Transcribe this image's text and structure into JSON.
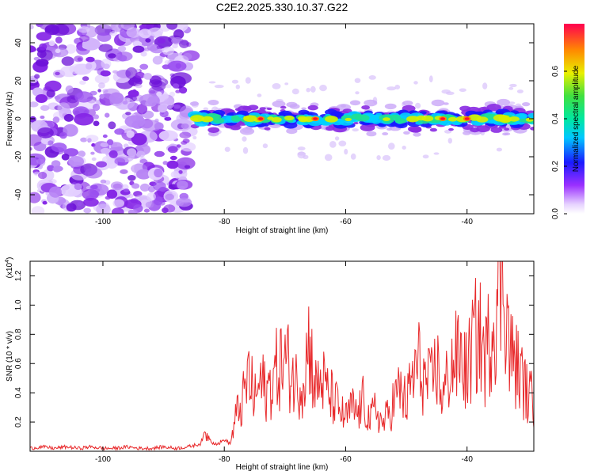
{
  "chart_data": [
    {
      "type": "heatmap",
      "title": "C2E2.2025.330.10.37.G22",
      "xlabel": "Height of straight line (km)",
      "ylabel": "Frequency (Hz)",
      "xlim": [
        -112,
        -29
      ],
      "ylim": [
        -50,
        50
      ],
      "xticks": [
        -100,
        -80,
        -60,
        -40
      ],
      "yticks": [
        -40,
        -20,
        0,
        20,
        40
      ],
      "colorbar": {
        "label": "Normalized spectral amplitude",
        "range": [
          0,
          0.8
        ],
        "ticks": [
          0.0,
          0.2,
          0.4,
          0.6
        ]
      },
      "features": {
        "noise_region_x": [
          -112,
          -85
        ],
        "signal_band_x": [
          -85,
          -29
        ],
        "signal_band_center_hz": 0,
        "signal_band_halfwidth_hz": 5,
        "peak_x": [
          -74,
          -65,
          -44,
          -40
        ]
      }
    },
    {
      "type": "line",
      "xlabel": "Height of straight line (km)",
      "ylabel": "SNR (10 * v/v)",
      "scale_label": "(x10",
      "scale_exponent": "4",
      "xlim": [
        -112,
        -29
      ],
      "ylim": [
        0,
        1.3
      ],
      "xticks": [
        -100,
        -80,
        -60,
        -40
      ],
      "yticks": [
        0.2,
        0.4,
        0.6,
        0.8,
        1.0,
        1.2
      ],
      "series": [
        {
          "name": "SNR",
          "color": "#e8292b",
          "x": [
            -112,
            -110,
            -108,
            -106,
            -104,
            -102,
            -100,
            -98,
            -96,
            -94,
            -92,
            -90,
            -88,
            -86,
            -84,
            -83,
            -82,
            -81,
            -80,
            -79,
            -78,
            -77,
            -76,
            -75,
            -74,
            -73,
            -72,
            -71,
            -70,
            -69,
            -68,
            -67,
            -66,
            -65,
            -64,
            -63,
            -62,
            -61,
            -60,
            -59,
            -58,
            -57,
            -56,
            -55,
            -54,
            -53,
            -52,
            -51,
            -50,
            -49,
            -48,
            -47,
            -46,
            -45,
            -44,
            -43,
            -42,
            -41,
            -40,
            -39,
            -38,
            -37,
            -36,
            -35,
            -34,
            -33,
            -32,
            -31,
            -30,
            -29
          ],
          "y": [
            0.02,
            0.03,
            0.02,
            0.03,
            0.02,
            0.03,
            0.02,
            0.02,
            0.03,
            0.02,
            0.02,
            0.03,
            0.02,
            0.03,
            0.05,
            0.13,
            0.06,
            0.05,
            0.08,
            0.05,
            0.25,
            0.33,
            0.52,
            0.35,
            0.47,
            0.4,
            0.5,
            0.58,
            0.62,
            0.55,
            0.45,
            0.5,
            0.76,
            0.42,
            0.5,
            0.4,
            0.35,
            0.28,
            0.22,
            0.3,
            0.25,
            0.35,
            0.2,
            0.3,
            0.18,
            0.25,
            0.35,
            0.42,
            0.32,
            0.5,
            0.6,
            0.48,
            0.45,
            0.6,
            0.35,
            0.55,
            0.62,
            0.65,
            0.52,
            0.75,
            0.8,
            0.62,
            0.85,
            1.05,
            1.3,
            0.68,
            0.6,
            0.5,
            0.38,
            0.35
          ]
        }
      ]
    }
  ]
}
